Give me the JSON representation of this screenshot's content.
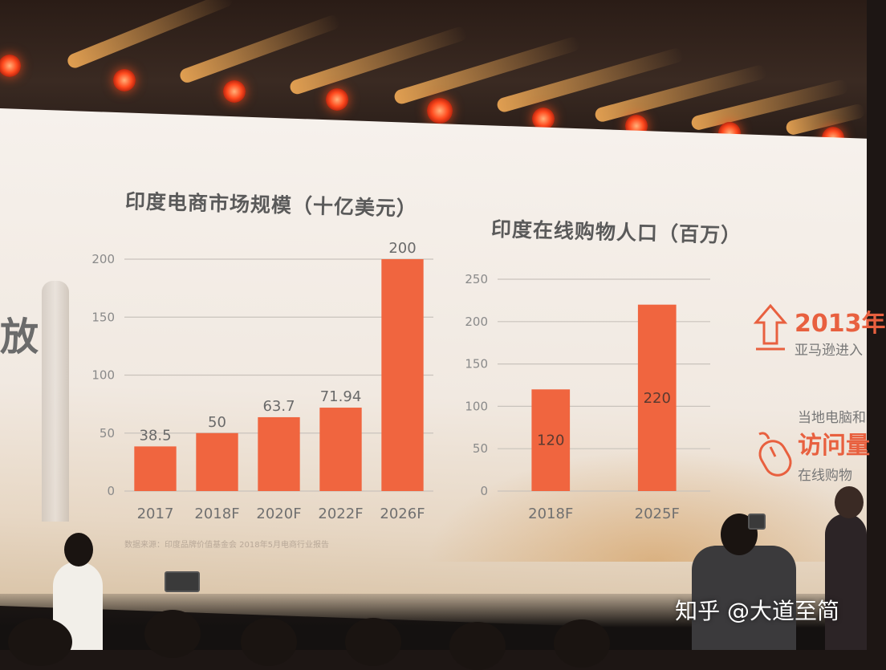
{
  "chart_data": [
    {
      "type": "bar",
      "title": "印度电商市场规模（十亿美元）",
      "categories": [
        "2017",
        "2018F",
        "2020F",
        "2022F",
        "2026F"
      ],
      "values": [
        38.5,
        50,
        63.7,
        71.94,
        200
      ],
      "data_labels": [
        "38.5",
        "50",
        "63.7",
        "71.94",
        "200"
      ],
      "ylim": [
        0,
        200
      ],
      "yticks": [
        "0",
        "50",
        "100",
        "150",
        "200"
      ],
      "grid": true,
      "bar_color": "#f0653f"
    },
    {
      "type": "bar",
      "title": "印度在线购物人口（百万）",
      "categories": [
        "2018F",
        "2025F"
      ],
      "values": [
        120,
        220
      ],
      "data_labels": [
        "120",
        "220"
      ],
      "ylim": [
        0,
        250
      ],
      "yticks": [
        "0",
        "50",
        "100",
        "150",
        "200",
        "250"
      ],
      "grid": true,
      "bar_color": "#f0653f"
    }
  ],
  "left_partial_text": "放",
  "right_panel": {
    "year_text": "2013年",
    "amazon_text": "亚马逊进入",
    "local_text": "当地电脑和",
    "visit_text": "访问量",
    "online_text": "在线购物",
    "arrow_icon": "up-arrow-icon",
    "mouse_icon": "mouse-icon"
  },
  "source_note": "数据来源：印度品牌价值基金会 2018年5月电商行业报告",
  "watermark": "知乎 @大道至简",
  "colors": {
    "accent": "#f0653f",
    "title_gray": "#5a5a5a",
    "stage_light": "#ff4a1e"
  }
}
